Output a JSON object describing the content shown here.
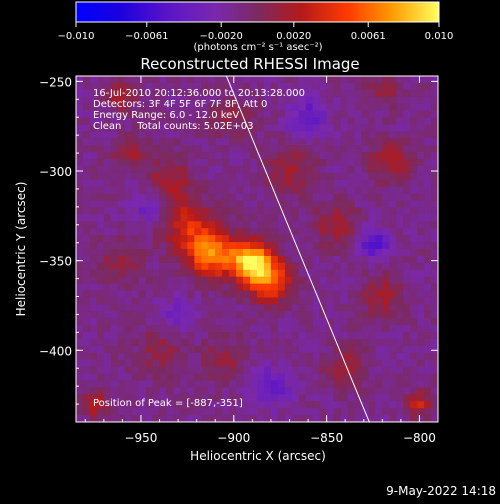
{
  "chart_data": {
    "type": "heatmap",
    "title": "Reconstructed RHESSI Image",
    "xlabel": "Heliocentric X (arcsec)",
    "ylabel": "Heliocentric Y (arcsec)",
    "xlim": [
      -985,
      -790
    ],
    "ylim": [
      -440,
      -247
    ],
    "x_ticks": [
      {
        "v": -950,
        "label": "−950"
      },
      {
        "v": -900,
        "label": "−900"
      },
      {
        "v": -850,
        "label": "−850"
      },
      {
        "v": -800,
        "label": "−800"
      }
    ],
    "y_ticks": [
      {
        "v": -250,
        "label": "−250"
      },
      {
        "v": -300,
        "label": "−300"
      },
      {
        "v": -350,
        "label": "−350"
      },
      {
        "v": -400,
        "label": "−400"
      }
    ],
    "colorbar": {
      "range": [
        -0.01,
        0.01
      ],
      "ticks": [
        {
          "v": -0.01,
          "label": "−0.010"
        },
        {
          "v": -0.0061,
          "label": "−0.0061"
        },
        {
          "v": -0.002,
          "label": "−0.0020"
        },
        {
          "v": 0.002,
          "label": "0.0020"
        },
        {
          "v": 0.0061,
          "label": "0.0061"
        },
        {
          "v": 0.01,
          "label": "0.010"
        }
      ],
      "unit_label": "(photons cm⁻² s⁻¹ asec⁻²)"
    },
    "info_lines": [
      "16-Jul-2010 20:12:36.000 to 20:13:28.000",
      "Detectors: 3F 4F 5F 6F 7F 8F, Att 0",
      "Energy Range: 6.0 - 12.0 keV",
      "Clean     Total counts: 5.02E+03"
    ],
    "peak_label": "Position of Peak = [-887,-351]",
    "peak": [
      -887,
      -351
    ],
    "limb_line": [
      [
        -904,
        -247
      ],
      [
        -827,
        -440
      ]
    ],
    "sources": [
      {
        "x": -890,
        "y": -351,
        "amp": 0.0105,
        "sigma": 8
      },
      {
        "x": -912,
        "y": -346,
        "amp": 0.008,
        "sigma": 9
      },
      {
        "x": -880,
        "y": -362,
        "amp": 0.006,
        "sigma": 8
      },
      {
        "x": -925,
        "y": -330,
        "amp": 0.0045,
        "sigma": 10
      },
      {
        "x": -935,
        "y": -305,
        "amp": 0.0032,
        "sigma": 8
      },
      {
        "x": -955,
        "y": -290,
        "amp": 0.0025,
        "sigma": 7
      },
      {
        "x": -960,
        "y": -350,
        "amp": 0.0022,
        "sigma": 9
      },
      {
        "x": -940,
        "y": -400,
        "amp": 0.002,
        "sigma": 9
      },
      {
        "x": -905,
        "y": -405,
        "amp": 0.0022,
        "sigma": 8
      },
      {
        "x": -870,
        "y": -300,
        "amp": 0.0028,
        "sigma": 9
      },
      {
        "x": -845,
        "y": -330,
        "amp": 0.003,
        "sigma": 8
      },
      {
        "x": -815,
        "y": -295,
        "amp": 0.003,
        "sigma": 8
      },
      {
        "x": -820,
        "y": -370,
        "amp": 0.0028,
        "sigma": 8
      },
      {
        "x": -840,
        "y": -410,
        "amp": 0.0025,
        "sigma": 8
      },
      {
        "x": -900,
        "y": -270,
        "amp": 0.002,
        "sigma": 8
      },
      {
        "x": -975,
        "y": -430,
        "amp": 0.004,
        "sigma": 5
      },
      {
        "x": -800,
        "y": -430,
        "amp": 0.004,
        "sigma": 5
      },
      {
        "x": -960,
        "y": -258,
        "amp": 0.003,
        "sigma": 6
      },
      {
        "x": -820,
        "y": -255,
        "amp": 0.0025,
        "sigma": 6
      },
      {
        "x": -860,
        "y": -270,
        "amp": -0.003,
        "sigma": 8
      },
      {
        "x": -825,
        "y": -340,
        "amp": -0.004,
        "sigma": 6
      },
      {
        "x": -880,
        "y": -420,
        "amp": -0.003,
        "sigma": 8
      },
      {
        "x": -945,
        "y": -320,
        "amp": -0.0025,
        "sigma": 7
      },
      {
        "x": -930,
        "y": -380,
        "amp": -0.002,
        "sigma": 7
      }
    ]
  },
  "footer": {
    "timestamp": "9-May-2022 14:18"
  }
}
